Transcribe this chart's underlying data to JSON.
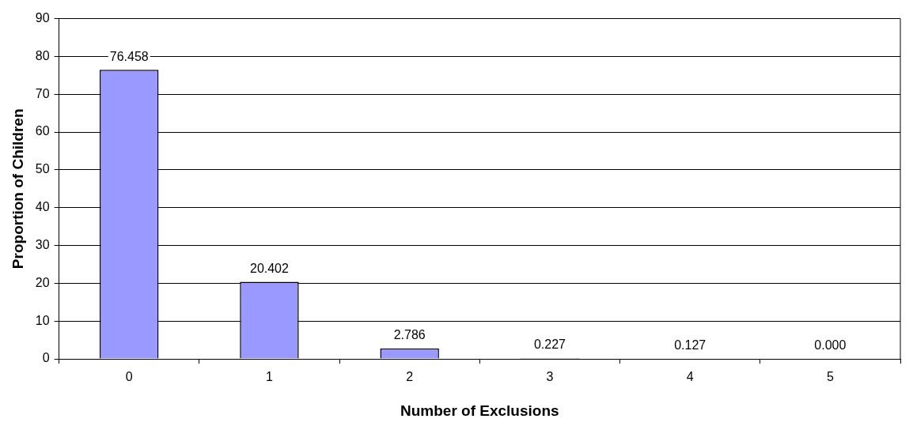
{
  "chart_data": {
    "type": "bar",
    "xlabel": "Number of Exclusions",
    "ylabel": "Proportion of Children",
    "categories": [
      "0",
      "1",
      "2",
      "3",
      "4",
      "5"
    ],
    "values": [
      76.458,
      20.402,
      2.786,
      0.227,
      0.127,
      0
    ],
    "value_labels": [
      "76.458",
      "20.402",
      "2.786",
      "0.227",
      "0.127",
      "0.000"
    ],
    "color": "#9999ff",
    "ylim": [
      0,
      90
    ],
    "yticks": [
      0,
      10,
      20,
      30,
      40,
      50,
      60,
      70,
      80,
      90
    ],
    "grid": "y",
    "legend": false
  }
}
